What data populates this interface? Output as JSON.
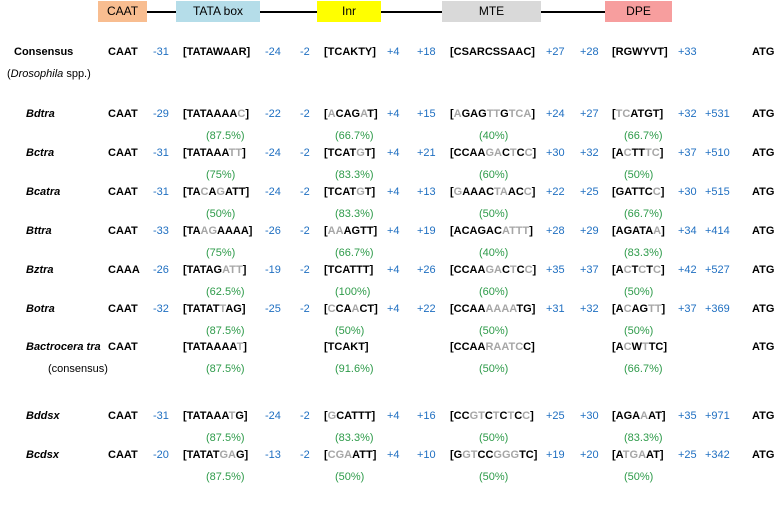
{
  "elements": [
    {
      "name": "CAAT",
      "color": "#f8bd90"
    },
    {
      "name": "TATA box",
      "color": "#b5dde9"
    },
    {
      "name": "Inr",
      "color": "#ffff00"
    },
    {
      "name": "MTE",
      "color": "#d9d9d9"
    },
    {
      "name": "DPE",
      "color": "#f79e9e"
    }
  ],
  "colors": {
    "position": "#1f6fc1",
    "percent": "#2e9b4a",
    "mismatch": "#a6a6a6"
  },
  "rows": [
    {
      "label": "Consensus",
      "sublabel_italic": "Drosophila",
      "sublabel_rest": " spp.)",
      "sublabel_open": "(",
      "label_style": "plain",
      "caat": "CAAT",
      "p1": "-31",
      "tata": "[TATAWAAR]",
      "p2": "-24",
      "p3": "-2",
      "inr": "[TCAKTY]",
      "p4": "+4",
      "p5": "+18",
      "mte": "[CSARCSSAAC]",
      "p6": "+27",
      "p7": "+28",
      "dpe": "[RGWYVT]",
      "p8": "+33",
      "p9": "",
      "atg": "ATG",
      "tata_pct": "",
      "inr_pct": "",
      "mte_pct": "",
      "dpe_pct": ""
    },
    {
      "label": "Bdtra",
      "caat": "CAAT",
      "p1": "-29",
      "tata": "[TATAAAA^C^]",
      "p2": "-22",
      "p3": "-2",
      "inr": "[^A^CAG^A^T]",
      "p4": "+4",
      "p5": "+15",
      "mte": "[^A^GAG^TT^G^TCA^]",
      "p6": "+24",
      "p7": "+27",
      "dpe": "[^TC^ATGT]",
      "p8": "+32",
      "p9": "+531",
      "atg": "ATG",
      "tata_pct": "(87.5%)",
      "inr_pct": "(66.7%)",
      "mte_pct": "(40%)",
      "dpe_pct": "(66.7%)"
    },
    {
      "label": "Bctra",
      "caat": "CAAT",
      "p1": "-31",
      "tata": "[TATAAA^TT^]",
      "p2": "-24",
      "p3": "-2",
      "inr": "[TCAT^G^T]",
      "p4": "+4",
      "p5": "+21",
      "mte": "[CCAA^GA^C^T^C^C^]",
      "p6": "+30",
      "p7": "+32",
      "dpe": "[A^C^TT^TC^]",
      "p8": "+37",
      "p9": "+510",
      "atg": "ATG",
      "tata_pct": "(75%)",
      "inr_pct": "(83.3%)",
      "mte_pct": "(60%)",
      "dpe_pct": "(50%)"
    },
    {
      "label": "Bcatra",
      "caat": "CAAT",
      "p1": "-31",
      "tata": "[TA^C^A^G^ATT]",
      "p2": "-24",
      "p3": "-2",
      "inr": "[TCAT^G^T]",
      "p4": "+4",
      "p5": "+13",
      "mte": "[^G^AAAC^TA^AC^C^]",
      "p6": "+22",
      "p7": "+25",
      "dpe": "[GATTC^C^]",
      "p8": "+30",
      "p9": "+515",
      "atg": "ATG",
      "tata_pct": "(50%)",
      "inr_pct": "(83.3%)",
      "mte_pct": "(50%)",
      "dpe_pct": "(66.7%)"
    },
    {
      "label": "Bttra",
      "caat": "CAAT",
      "p1": "-33",
      "tata": "[TA^AG^AAAA]",
      "p2": "-26",
      "p3": "-2",
      "inr": "[^AA^AGTT]",
      "p4": "+4",
      "p5": "+19",
      "mte": "[ACAGAC^ATTT^]",
      "p6": "+28",
      "p7": "+29",
      "dpe": "[AGATA^A^]",
      "p8": "+34",
      "p9": "+414",
      "atg": "ATG",
      "tata_pct": "(75%)",
      "inr_pct": "(66.7%)",
      "mte_pct": "(40%)",
      "dpe_pct": "(83.3%)"
    },
    {
      "label": "Bztra",
      "caat": "CAAA",
      "p1": "-26",
      "tata": "[TATAG^ATT^]",
      "p2": "-19",
      "p3": "-2",
      "inr": "[TCATTT]",
      "p4": "+4",
      "p5": "+26",
      "mte": "[CCAA^GA^C^T^C^C^]",
      "p6": "+35",
      "p7": "+37",
      "dpe": "[A^C^T^C^T^C^]",
      "p8": "+42",
      "p9": "+527",
      "atg": "ATG",
      "tata_pct": "(62.5%)",
      "inr_pct": "(100%)",
      "mte_pct": "(60%)",
      "dpe_pct": "(50%)"
    },
    {
      "label": "Botra",
      "caat": "CAAT",
      "p1": "-32",
      "tata": "[TATAT^T^AG]",
      "p2": "-25",
      "p3": "-2",
      "inr": "[^C^CA^A^CT]",
      "p4": "+4",
      "p5": "+22",
      "mte": "[CCAA^AAAA^TG]",
      "p6": "+31",
      "p7": "+32",
      "dpe": "[A^C^AG^TT^]",
      "p8": "+37",
      "p9": "+369",
      "atg": "ATG",
      "tata_pct": "(87.5%)",
      "inr_pct": "(50%)",
      "mte_pct": "(50%)",
      "dpe_pct": "(50%)"
    },
    {
      "label": "Bactrocera tra",
      "sublabel": "(consensus)",
      "caat": "CAAT",
      "p1": "",
      "tata": "[TATAAAA^T^]",
      "p2": "",
      "p3": "",
      "inr": "[TCAKT]",
      "p4": "",
      "p5": "",
      "mte": "[CCAA^RAATC^C]",
      "p6": "",
      "p7": "",
      "dpe": "[A^C^W^T^TC]",
      "p8": "",
      "p9": "",
      "atg": "ATG",
      "tata_pct": "(87.5%)",
      "inr_pct": "(91.6%)",
      "mte_pct": "(50%)",
      "dpe_pct": "(66.7%)"
    },
    {
      "label": "Bddsx",
      "caat": "CAAT",
      "p1": "-31",
      "tata": "[TATAAA^T^G]",
      "p2": "-24",
      "p3": "-2",
      "inr": "[^G^CATTT]",
      "p4": "+4",
      "p5": "+16",
      "mte": "[CC^GT^C^T^C^T^C^C^]",
      "p6": "+25",
      "p7": "+30",
      "dpe": "[AGA^A^AT]",
      "p8": "+35",
      "p9": "+971",
      "atg": "ATG",
      "tata_pct": "(87.5%)",
      "inr_pct": "(83.3%)",
      "mte_pct": "(50%)",
      "dpe_pct": "(83.3%)"
    },
    {
      "label": "Bcdsx",
      "caat": "CAAT",
      "p1": "-20",
      "tata": "[TATAT^GA^G]",
      "p2": "-13",
      "p3": "-2",
      "inr": "[^CGA^ATT]",
      "p4": "+4",
      "p5": "+10",
      "mte": "[G^GT^CC^GGG^TC]",
      "p6": "+19",
      "p7": "+20",
      "dpe": "[A^TGA^AT]",
      "p8": "+25",
      "p9": "+342",
      "atg": "ATG",
      "tata_pct": "(87.5%)",
      "inr_pct": "(50%)",
      "mte_pct": "(50%)",
      "dpe_pct": "(50%)"
    }
  ]
}
